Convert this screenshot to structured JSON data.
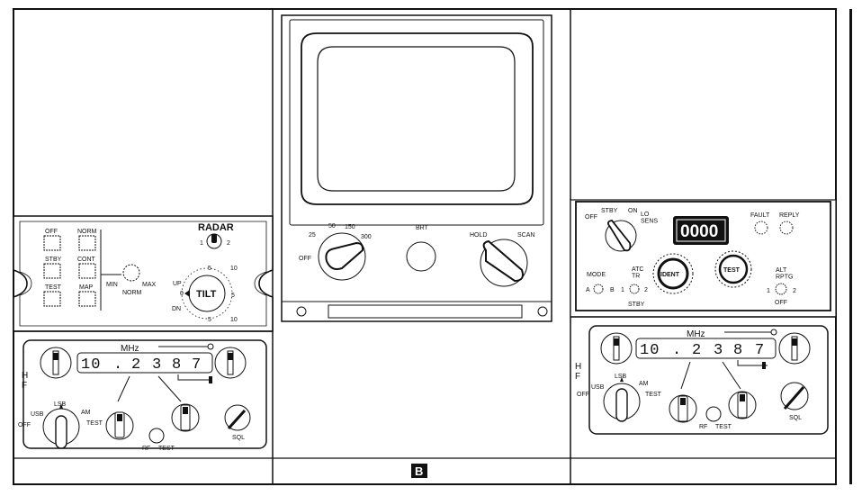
{
  "figure_label": "B",
  "radar_panel": {
    "title": "RADAR",
    "buttons": [
      "OFF",
      "NORM",
      "STBY",
      "CONT",
      "TEST",
      "MAP"
    ],
    "knob_labels": {
      "min": "MIN",
      "max": "MAX",
      "norm": "NORM"
    },
    "switch_labels": {
      "left": "1",
      "right": "2"
    },
    "tilt": {
      "label": "TILT",
      "up": "UP",
      "dn": "DN",
      "zero": "0",
      "scale_upper": [
        "5",
        "10"
      ],
      "scale_lower": [
        "5",
        "10"
      ]
    }
  },
  "display": {
    "range_labels": [
      "OFF",
      "25",
      "50",
      "150",
      "300"
    ],
    "brt_label": "BRT",
    "hold_label": "HOLD",
    "scan_label": "SCAN"
  },
  "transponder": {
    "mode_labels": {
      "stby": "STBY",
      "off": "OFF",
      "on": "ON",
      "lo_sens": "LO\nSENS"
    },
    "code": "0000",
    "fault_label": "FAULT",
    "reply_label": "REPLY",
    "mode_label": "MODE",
    "mode_a": "A",
    "mode_b": "B",
    "atc_tr_label": "ATC\nTR",
    "atc_1": "1",
    "atc_2": "2",
    "atc_stby": "STBY",
    "ident_label": "IDENT",
    "test_label": "TEST",
    "alt_rptg_label": "ALT\nRPTG",
    "alt_1": "1",
    "alt_2": "2",
    "alt_off": "OFF"
  },
  "hf_left": {
    "freq_unit": "MHz",
    "frequency_digits": [
      "10",
      ".",
      "2",
      "3",
      "8",
      "7"
    ],
    "side_label": "H\nF",
    "mode_labels": {
      "lsb": "LSB",
      "usb": "USB",
      "am": "AM",
      "off": "OFF",
      "test": "TEST"
    },
    "sql_label": "SQL",
    "rf_label": "RF",
    "test_label": "TEST"
  },
  "hf_right": {
    "freq_unit": "MHz",
    "frequency_digits": [
      "10",
      ".",
      "2",
      "3",
      "8",
      "7"
    ],
    "side_label": "H\nF",
    "mode_labels": {
      "lsb": "LSB",
      "usb": "USB",
      "am": "AM",
      "off": "OFF",
      "test": "TEST"
    },
    "sql_label": "SQL",
    "rf_label": "RF",
    "test_label": "TEST"
  }
}
